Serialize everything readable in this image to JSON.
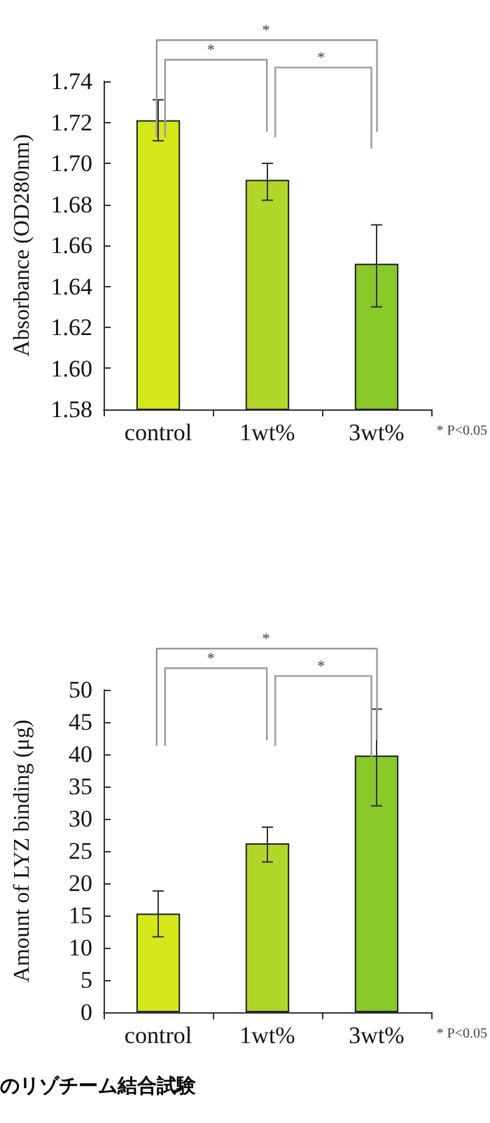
{
  "chart_data": [
    {
      "type": "bar",
      "categories": [
        "control",
        "1wt%",
        "3wt%"
      ],
      "values": [
        1.721,
        1.692,
        1.651
      ],
      "colors": [
        "#d4e81a",
        "#b2d628",
        "#88c828"
      ],
      "errors": [
        [
          1.711,
          1.731
        ],
        [
          1.682,
          1.7
        ],
        [
          1.63,
          1.67
        ]
      ],
      "ylabel": "Absorbance (OD280nm)",
      "ylim": [
        1.58,
        1.74
      ],
      "yticks": [
        {
          "value": 1.58,
          "label": "1.58"
        },
        {
          "value": 1.6,
          "label": "1.60"
        },
        {
          "value": 1.62,
          "label": "1.62"
        },
        {
          "value": 1.64,
          "label": "1.64"
        },
        {
          "value": 1.66,
          "label": "1.66"
        },
        {
          "value": 1.68,
          "label": "1.68"
        },
        {
          "value": 1.7,
          "label": "1.70"
        },
        {
          "value": 1.72,
          "label": "1.72"
        },
        {
          "value": 1.74,
          "label": "1.74"
        }
      ],
      "annotations": [
        "*",
        "*",
        "*",
        "* P<0.05"
      ]
    },
    {
      "type": "bar",
      "categories": [
        "control",
        "1wt%",
        "3wt%"
      ],
      "values": [
        15.3,
        26.2,
        39.8
      ],
      "colors": [
        "#d4e81a",
        "#b2d628",
        "#88c828"
      ],
      "errors": [
        [
          11.7,
          18.8
        ],
        [
          23.3,
          28.7
        ],
        [
          32,
          47
        ]
      ],
      "ylabel": "Amount of LYZ binding (μg)",
      "ylim": [
        0,
        50
      ],
      "yticks": [
        0,
        5,
        10,
        15,
        20,
        25,
        30,
        35,
        40,
        45,
        50
      ],
      "annotations": [
        "*",
        "*",
        "*",
        "* P<0.05",
        "のリゾチーム結合試験"
      ]
    }
  ]
}
